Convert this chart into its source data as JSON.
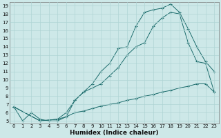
{
  "xlabel": "Humidex (Indice chaleur)",
  "bg_color": "#cde8e8",
  "line_color": "#1a6b6b",
  "grid_color": "#afd4d4",
  "ylim": [
    4.7,
    19.4
  ],
  "xlim": [
    -0.5,
    23.5
  ],
  "yticks": [
    5,
    6,
    7,
    8,
    9,
    10,
    11,
    12,
    13,
    14,
    15,
    16,
    17,
    18,
    19
  ],
  "xticks": [
    0,
    1,
    2,
    3,
    4,
    5,
    6,
    7,
    8,
    9,
    10,
    11,
    12,
    13,
    14,
    15,
    16,
    17,
    18,
    19,
    20,
    21,
    22,
    23
  ],
  "curve1_x": [
    0,
    1,
    2,
    3,
    4,
    5,
    6,
    7,
    8,
    9,
    10,
    11,
    12,
    13,
    14,
    15,
    16,
    17,
    18,
    19,
    20,
    21,
    22,
    23
  ],
  "curve1_y": [
    6.7,
    5.0,
    6.0,
    5.2,
    5.0,
    5.0,
    5.5,
    7.5,
    8.5,
    9.5,
    11.0,
    12.0,
    13.8,
    14.0,
    16.5,
    18.2,
    18.5,
    18.7,
    19.2,
    18.2,
    16.2,
    14.0,
    12.2,
    11.0
  ],
  "curve2_x": [
    0,
    3,
    5,
    6,
    7,
    8,
    9,
    10,
    11,
    12,
    13,
    14,
    15,
    16,
    17,
    18,
    19,
    20,
    21,
    22,
    23
  ],
  "curve2_y": [
    6.7,
    5.0,
    5.2,
    6.0,
    7.5,
    8.5,
    9.0,
    9.5,
    10.5,
    11.5,
    13.0,
    14.0,
    14.5,
    16.5,
    17.5,
    18.2,
    18.0,
    14.5,
    12.2,
    12.0,
    8.5
  ],
  "curve3_x": [
    0,
    3,
    5,
    6,
    7,
    8,
    9,
    10,
    11,
    12,
    13,
    14,
    15,
    16,
    17,
    18,
    19,
    20,
    21,
    22,
    23
  ],
  "curve3_y": [
    6.7,
    5.0,
    5.2,
    5.5,
    6.0,
    6.2,
    6.5,
    6.8,
    7.0,
    7.2,
    7.5,
    7.7,
    8.0,
    8.2,
    8.5,
    8.7,
    9.0,
    9.2,
    9.5,
    9.5,
    8.5
  ]
}
